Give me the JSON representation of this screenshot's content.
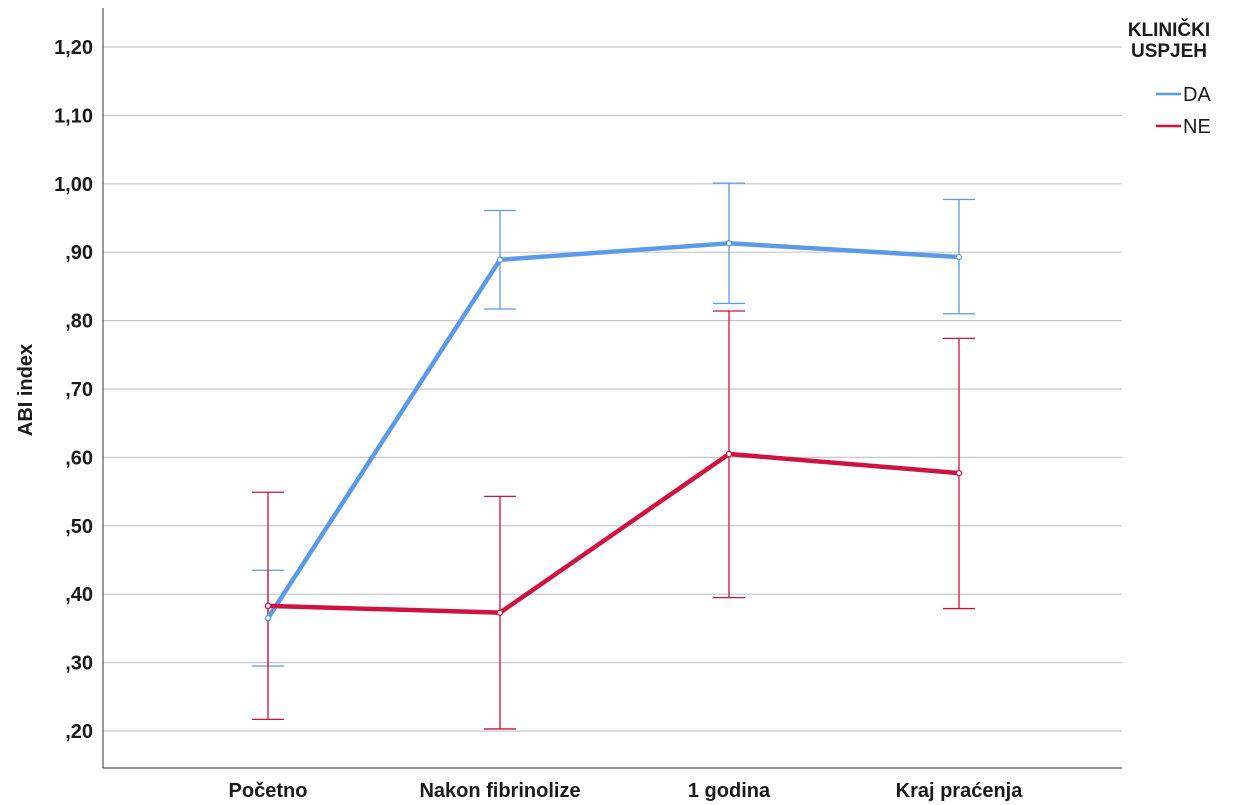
{
  "chart_data": {
    "type": "line",
    "ylabel": "ABI index",
    "xlabel": "",
    "categories": [
      "Početno",
      "Nakon fibrinolize",
      "1 godina",
      "Kraj praćenja"
    ],
    "ylim": [
      0.15,
      1.25
    ],
    "yticks": [
      0.2,
      0.3,
      0.4,
      0.5,
      0.6,
      0.7,
      0.8,
      0.9,
      1.0,
      1.1,
      1.2
    ],
    "ytick_labels": [
      ",20",
      ",30",
      ",40",
      ",50",
      ",60",
      ",70",
      ",80",
      ",90",
      "1,00",
      "1,10",
      "1,20"
    ],
    "grid": "horizontal",
    "legend": {
      "title_lines": [
        "KLINIČKI",
        "USPJEH"
      ],
      "placement": "top-right"
    },
    "series": [
      {
        "name": "DA",
        "color": "#5b9ae6",
        "values": [
          0.365,
          0.889,
          0.913,
          0.893
        ],
        "error_low": [
          0.295,
          0.817,
          0.825,
          0.81
        ],
        "error_high": [
          0.435,
          0.961,
          1.001,
          0.977
        ]
      },
      {
        "name": "NE",
        "color": "#d0123e",
        "values": [
          0.383,
          0.373,
          0.605,
          0.577
        ],
        "error_low": [
          0.217,
          0.203,
          0.395,
          0.379
        ],
        "error_high": [
          0.549,
          0.543,
          0.814,
          0.774
        ]
      }
    ]
  }
}
